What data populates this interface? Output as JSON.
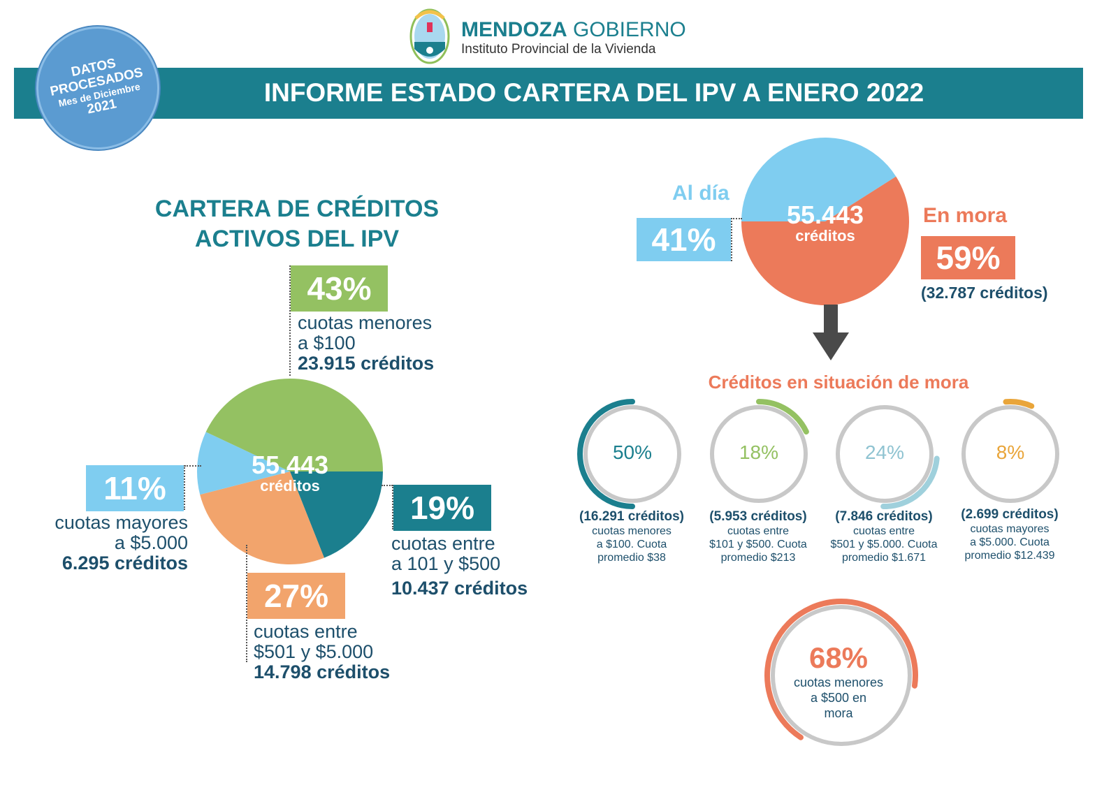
{
  "header": {
    "logo_brand_bold": "MENDOZA",
    "logo_brand_light": "GOBIERNO",
    "logo_subtitle": "Instituto Provincial de la Vivienda",
    "title": "INFORME ESTADO CARTERA DEL IPV A ENERO 2022"
  },
  "stamp": {
    "line1": "DATOS",
    "line2": "PROCESADOS",
    "line3": "Mes de Diciembre",
    "line4": "2021"
  },
  "colors": {
    "teal": "#1b7f8e",
    "green": "#94c162",
    "light_blue": "#7fcdf0",
    "orange": "#f2a46c",
    "salmon": "#ec7a5a",
    "navy": "#1d4f6b",
    "gray": "#c8c8c8",
    "pale_blue": "#9fd0dc",
    "amber": "#e9a53a"
  },
  "chart_data": [
    {
      "type": "pie",
      "title": "CARTERA DE CRÉDITOS ACTIVOS DEL IPV",
      "title_line1": "CARTERA DE CRÉDITOS",
      "title_line2": "ACTIVOS DEL IPV",
      "center_value": "55.443",
      "center_label": "créditos",
      "slices": [
        {
          "pct_label": "19%",
          "value": 19,
          "label1": "cuotas entre",
          "label2": "a 101 y $500",
          "count": "10.437 créditos",
          "color": "#1b7f8e"
        },
        {
          "pct_label": "27%",
          "value": 27,
          "label1": "cuotas entre",
          "label2": "$501 y $5.000",
          "count": "14.798 créditos",
          "color": "#f2a46c"
        },
        {
          "pct_label": "11%",
          "value": 11,
          "label1": "cuotas mayores",
          "label2": "a $5.000",
          "count": "6.295 créditos",
          "color": "#7fcdf0"
        },
        {
          "pct_label": "43%",
          "value": 43,
          "label1": "cuotas menores",
          "label2": "a $100",
          "count": "23.915 créditos",
          "color": "#94c162"
        }
      ]
    },
    {
      "type": "pie",
      "center_value": "55.443",
      "center_label": "créditos",
      "slices": [
        {
          "name": "Al día",
          "pct_label": "41%",
          "value": 41,
          "color": "#7fcdf0"
        },
        {
          "name": "En mora",
          "pct_label": "59%",
          "value": 59,
          "count": "(32.787 créditos)",
          "color": "#ec7a5a"
        }
      ]
    },
    {
      "type": "donut",
      "title": "Créditos en situación de mora",
      "rings": [
        {
          "pct_label": "50%",
          "value": 50,
          "count": "(16.291 créditos)",
          "line1": "cuotas menores",
          "line2": "a $100. Cuota",
          "line3": "promedio $38",
          "color": "#1b7f8e"
        },
        {
          "pct_label": "18%",
          "value": 18,
          "count": "(5.953 créditos)",
          "line1": "cuotas entre",
          "line2": "$101 y $500. Cuota",
          "line3": "promedio $213",
          "color": "#94c162"
        },
        {
          "pct_label": "24%",
          "value": 24,
          "count": "(7.846 créditos)",
          "line1": "cuotas entre",
          "line2": "$501 y $5.000. Cuota",
          "line3": "promedio $1.671",
          "color": "#9fd0dc"
        },
        {
          "pct_label": "8%",
          "value": 8,
          "count": "(2.699 créditos)",
          "line1": "cuotas mayores",
          "line2": "a  $5.000. Cuota",
          "line3": "promedio $12.439",
          "color": "#e9a53a"
        }
      ]
    },
    {
      "type": "donut",
      "pct_label": "68%",
      "value": 68,
      "line1": "cuotas menores",
      "line2": "a $500 en",
      "line3": "mora",
      "color": "#ec7a5a"
    }
  ]
}
